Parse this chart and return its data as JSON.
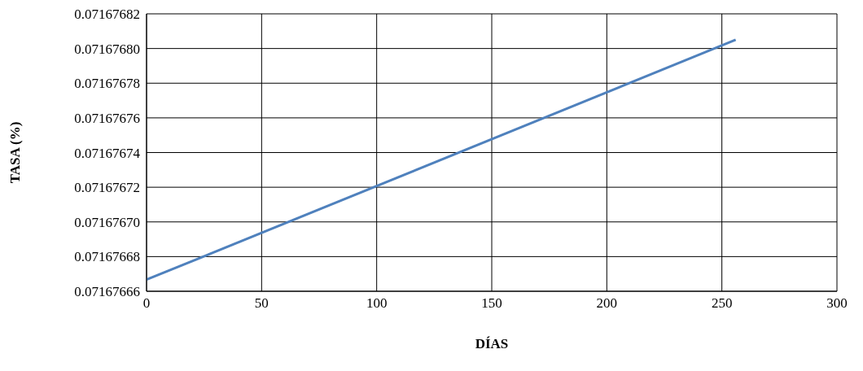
{
  "chart_data": {
    "type": "line",
    "xlabel": "DÍAS",
    "ylabel": "TASA (%)",
    "series": [
      {
        "color": "#4f81bd",
        "x": [
          0,
          256
        ],
        "values": [
          0.0716766667,
          0.071676805
        ]
      }
    ],
    "xlim": [
      0,
      300
    ],
    "xticks": [
      0,
      50,
      100,
      150,
      200,
      250,
      300
    ],
    "ylim": [
      0.07167666,
      0.07167682
    ],
    "yticks": [
      0.07167666,
      0.07167668,
      {
        "value": 0.0716767,
        "label": "0.07167670"
      },
      0.07167672,
      0.07167674,
      0.07167676,
      0.07167678,
      {
        "value": 0.0716768,
        "label": "0.07167680"
      },
      0.07167682
    ],
    "grid": true,
    "legend": false,
    "marker": "none",
    "line_style": "solid"
  }
}
